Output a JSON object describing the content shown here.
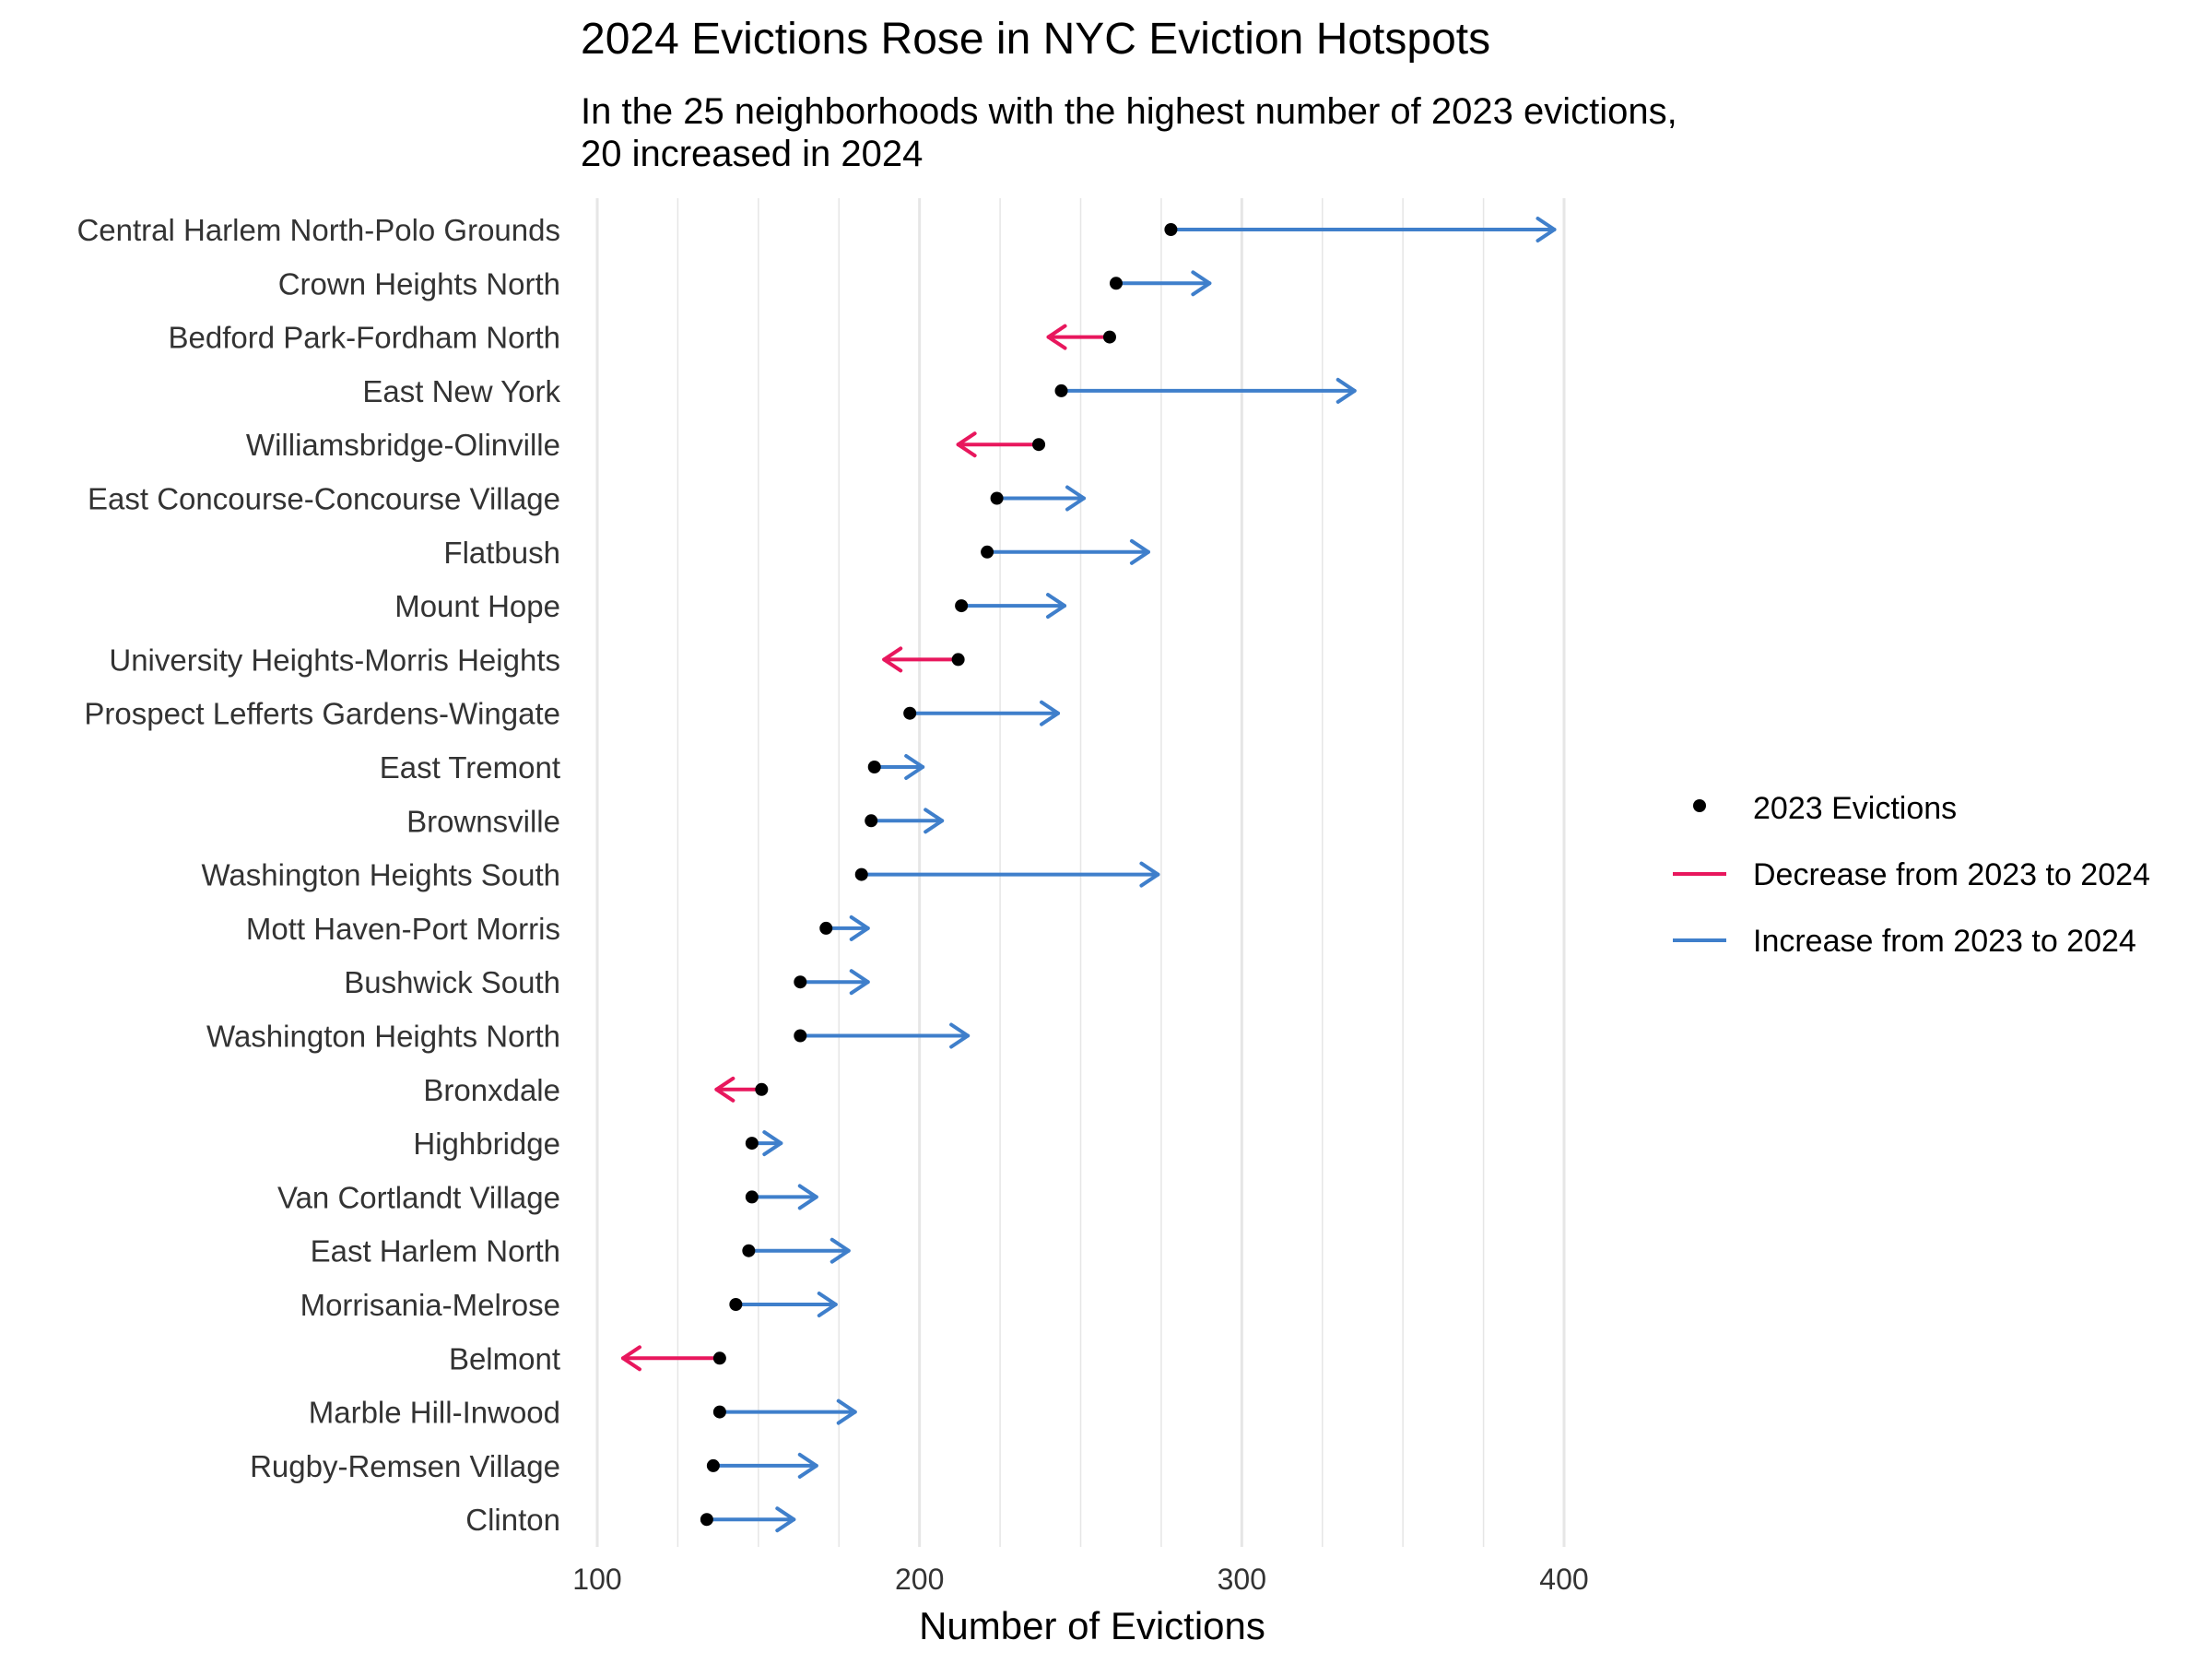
{
  "chart_data": {
    "type": "arrow-dot",
    "title": "2024 Evictions Rose in NYC Eviction Hotspots",
    "subtitle_lines": [
      "In the 25 neighborhoods with the highest number of 2023 evictions,",
      "20 increased in 2024"
    ],
    "xlabel": "Number of Evictions",
    "ylabel": "",
    "xlim": [
      100,
      400
    ],
    "xticks": [
      100,
      200,
      300,
      400
    ],
    "grid": true,
    "legend_position": "right",
    "colors": {
      "point": "#000000",
      "decrease": "#E8175D",
      "increase": "#3F7FCB",
      "grid": "#E6E6E6",
      "text": "#333333"
    },
    "legend": [
      {
        "key": "point",
        "label": "2023 Evictions"
      },
      {
        "key": "decrease",
        "label": "Decrease from 2023 to 2024"
      },
      {
        "key": "increase",
        "label": "Increase from 2023 to 2024"
      }
    ],
    "rows": [
      {
        "neighborhood": "Central Harlem North-Polo Grounds",
        "e2023": 278,
        "e2024": 397
      },
      {
        "neighborhood": "Crown Heights North",
        "e2023": 261,
        "e2024": 290
      },
      {
        "neighborhood": "Bedford Park-Fordham North",
        "e2023": 259,
        "e2024": 240
      },
      {
        "neighborhood": "East New York",
        "e2023": 244,
        "e2024": 335
      },
      {
        "neighborhood": "Williamsbridge-Olinville",
        "e2023": 237,
        "e2024": 212
      },
      {
        "neighborhood": "East Concourse-Concourse Village",
        "e2023": 224,
        "e2024": 251
      },
      {
        "neighborhood": "Flatbush",
        "e2023": 221,
        "e2024": 271
      },
      {
        "neighborhood": "Mount Hope",
        "e2023": 213,
        "e2024": 245
      },
      {
        "neighborhood": "University Heights-Morris Heights",
        "e2023": 212,
        "e2024": 189
      },
      {
        "neighborhood": "Prospect Lefferts Gardens-Wingate",
        "e2023": 197,
        "e2024": 243
      },
      {
        "neighborhood": "East Tremont",
        "e2023": 186,
        "e2024": 201
      },
      {
        "neighborhood": "Brownsville",
        "e2023": 185,
        "e2024": 207
      },
      {
        "neighborhood": "Washington Heights South",
        "e2023": 182,
        "e2024": 274
      },
      {
        "neighborhood": "Mott Haven-Port Morris",
        "e2023": 171,
        "e2024": 184
      },
      {
        "neighborhood": "Bushwick South",
        "e2023": 163,
        "e2024": 184
      },
      {
        "neighborhood": "Washington Heights North",
        "e2023": 163,
        "e2024": 215
      },
      {
        "neighborhood": "Bronxdale",
        "e2023": 151,
        "e2024": 137
      },
      {
        "neighborhood": "Highbridge",
        "e2023": 148,
        "e2024": 157
      },
      {
        "neighborhood": "Van Cortlandt Village",
        "e2023": 148,
        "e2024": 168
      },
      {
        "neighborhood": "East Harlem North",
        "e2023": 147,
        "e2024": 178
      },
      {
        "neighborhood": "Morrisania-Melrose",
        "e2023": 143,
        "e2024": 174
      },
      {
        "neighborhood": "Belmont",
        "e2023": 138,
        "e2024": 108
      },
      {
        "neighborhood": "Marble Hill-Inwood",
        "e2023": 138,
        "e2024": 180
      },
      {
        "neighborhood": "Rugby-Remsen Village",
        "e2023": 136,
        "e2024": 168
      },
      {
        "neighborhood": "Clinton",
        "e2023": 134,
        "e2024": 161
      }
    ]
  }
}
